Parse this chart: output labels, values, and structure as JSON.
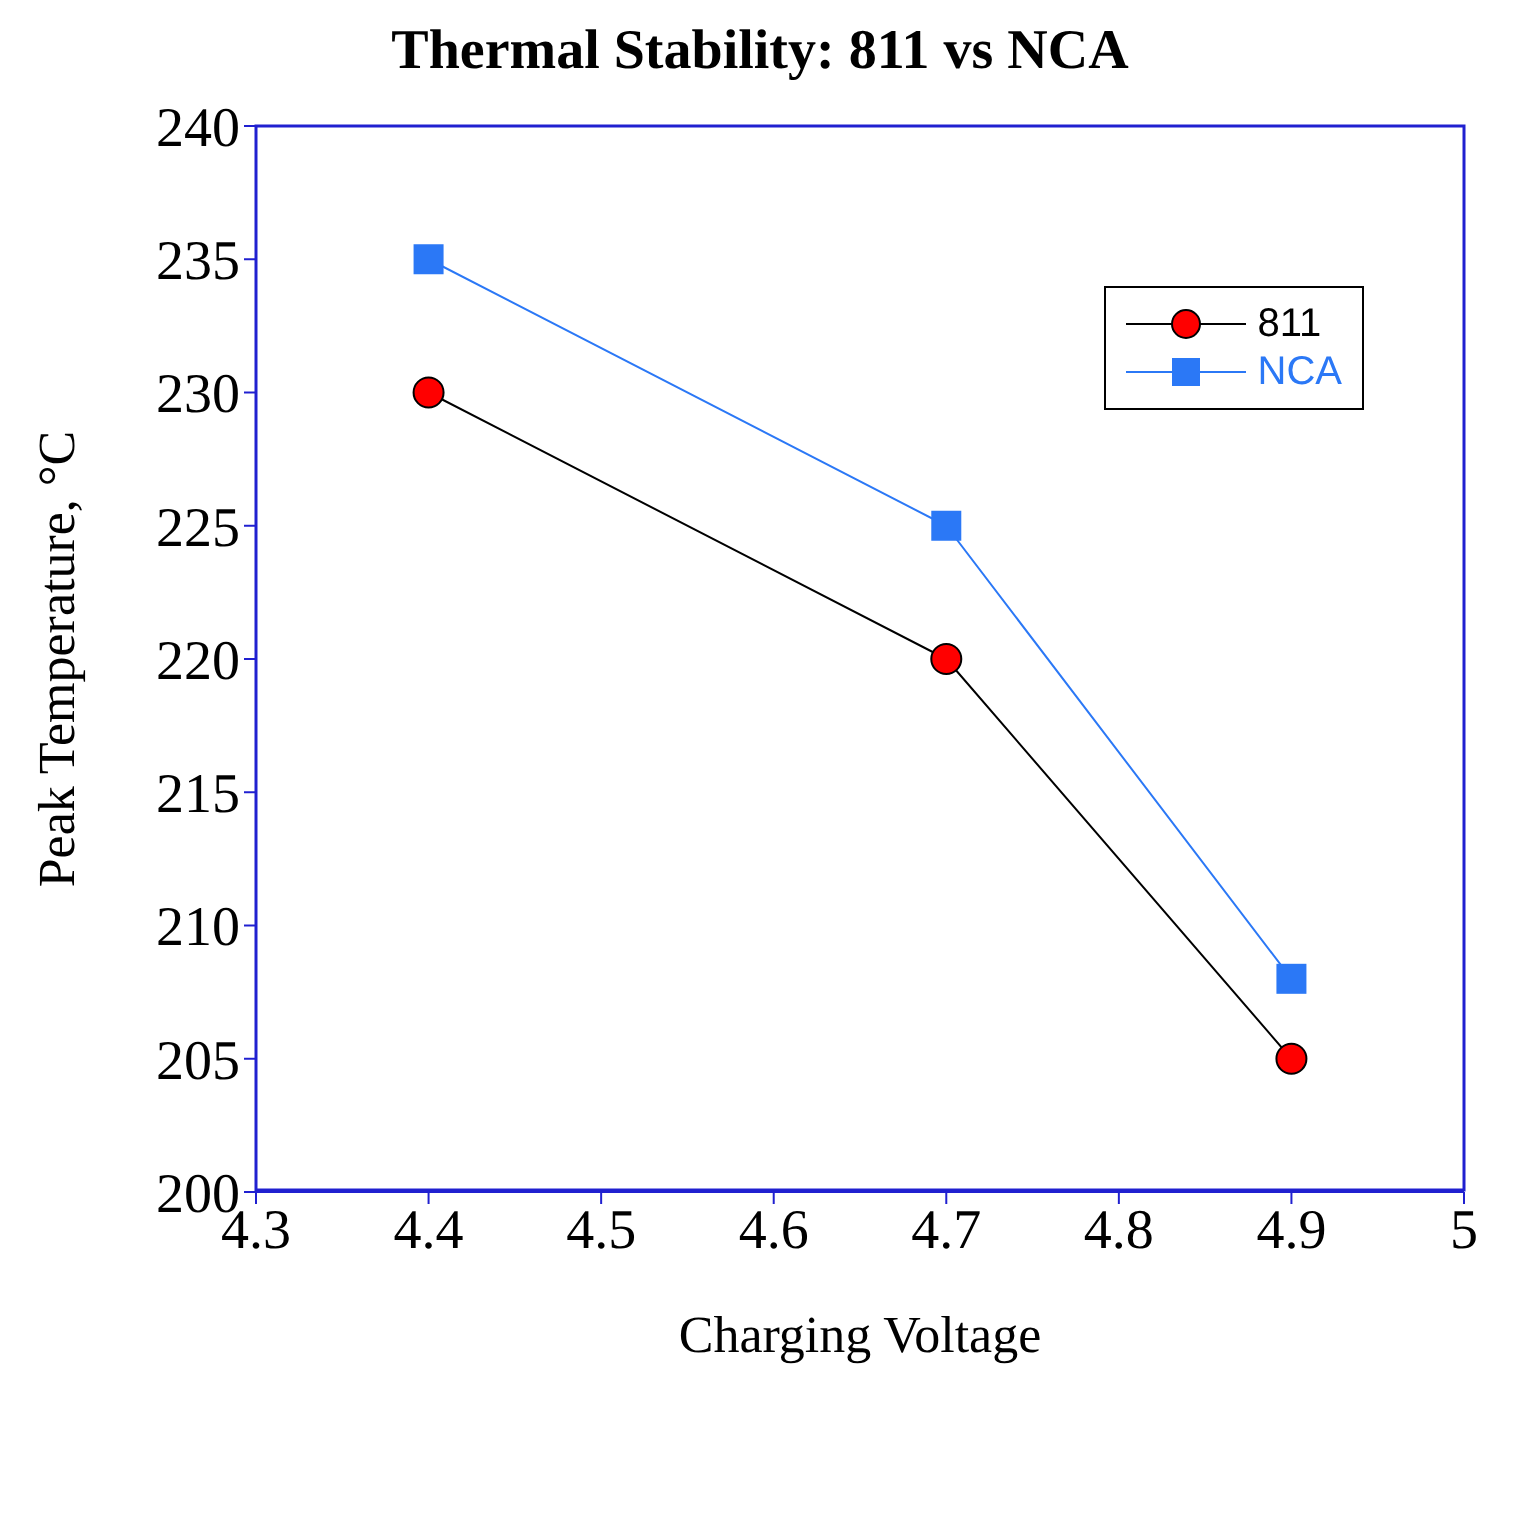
{
  "chart_data": {
    "type": "line",
    "title": "Thermal Stability: 811 vs NCA",
    "xlabel": "Charging Voltage",
    "ylabel": "Peak Temperature, °C",
    "x": [
      4.4,
      4.7,
      4.9
    ],
    "series": [
      {
        "name": "811",
        "color": "#000000",
        "colors": [
          "#ff0000",
          "#ff0000",
          "#ff0000"
        ],
        "marker": "circle",
        "values": [
          230,
          220,
          205
        ]
      },
      {
        "name": "NCA",
        "color": "#2b78f6",
        "marker": "square",
        "values": [
          235,
          225,
          208
        ]
      }
    ],
    "xlim": [
      4.3,
      5
    ],
    "xticks": [
      4.3,
      4.4,
      4.5,
      4.6,
      4.7,
      4.8,
      4.9,
      5
    ],
    "ylim": [
      200,
      240
    ],
    "yticks": [
      200,
      205,
      210,
      215,
      220,
      225,
      230,
      235,
      240
    ],
    "grid": false,
    "legend": "top right",
    "line_style": "solid"
  }
}
